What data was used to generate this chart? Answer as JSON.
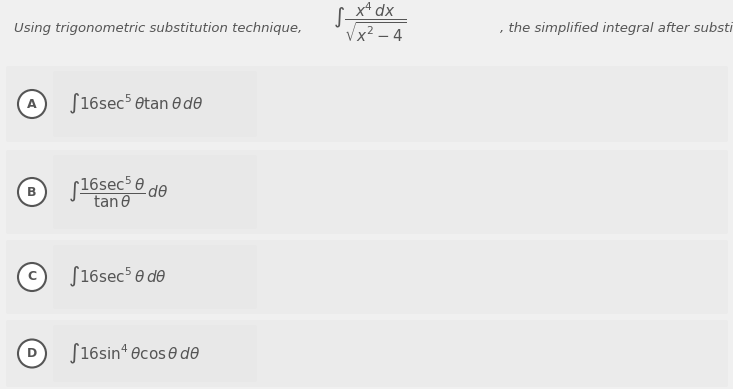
{
  "bg_color": "#f0f0f0",
  "option_box_color": "#e8e8e8",
  "outer_box_color": "#ebebeb",
  "text_color": "#555555",
  "title_text": "Using trigonometric substitution technique,",
  "title_suffix": ", the simplified integral after substitution is:",
  "integral_question": "$\\int \\dfrac{x^4\\,dx}{\\sqrt{x^2-4}}$",
  "options": [
    {
      "label": "A",
      "math": "$\\int 16\\sec^5\\theta\\tan\\theta\\,d\\theta$"
    },
    {
      "label": "B",
      "math": "$\\int \\dfrac{16\\sec^5\\theta}{\\tan\\theta}\\,d\\theta$"
    },
    {
      "label": "C",
      "math": "$\\int 16\\sec^5\\theta\\,d\\theta$"
    },
    {
      "label": "D",
      "math": "$\\int 16\\sin^4\\theta\\cos\\theta\\,d\\theta$"
    }
  ],
  "figsize": [
    7.33,
    3.89
  ],
  "dpi": 100
}
